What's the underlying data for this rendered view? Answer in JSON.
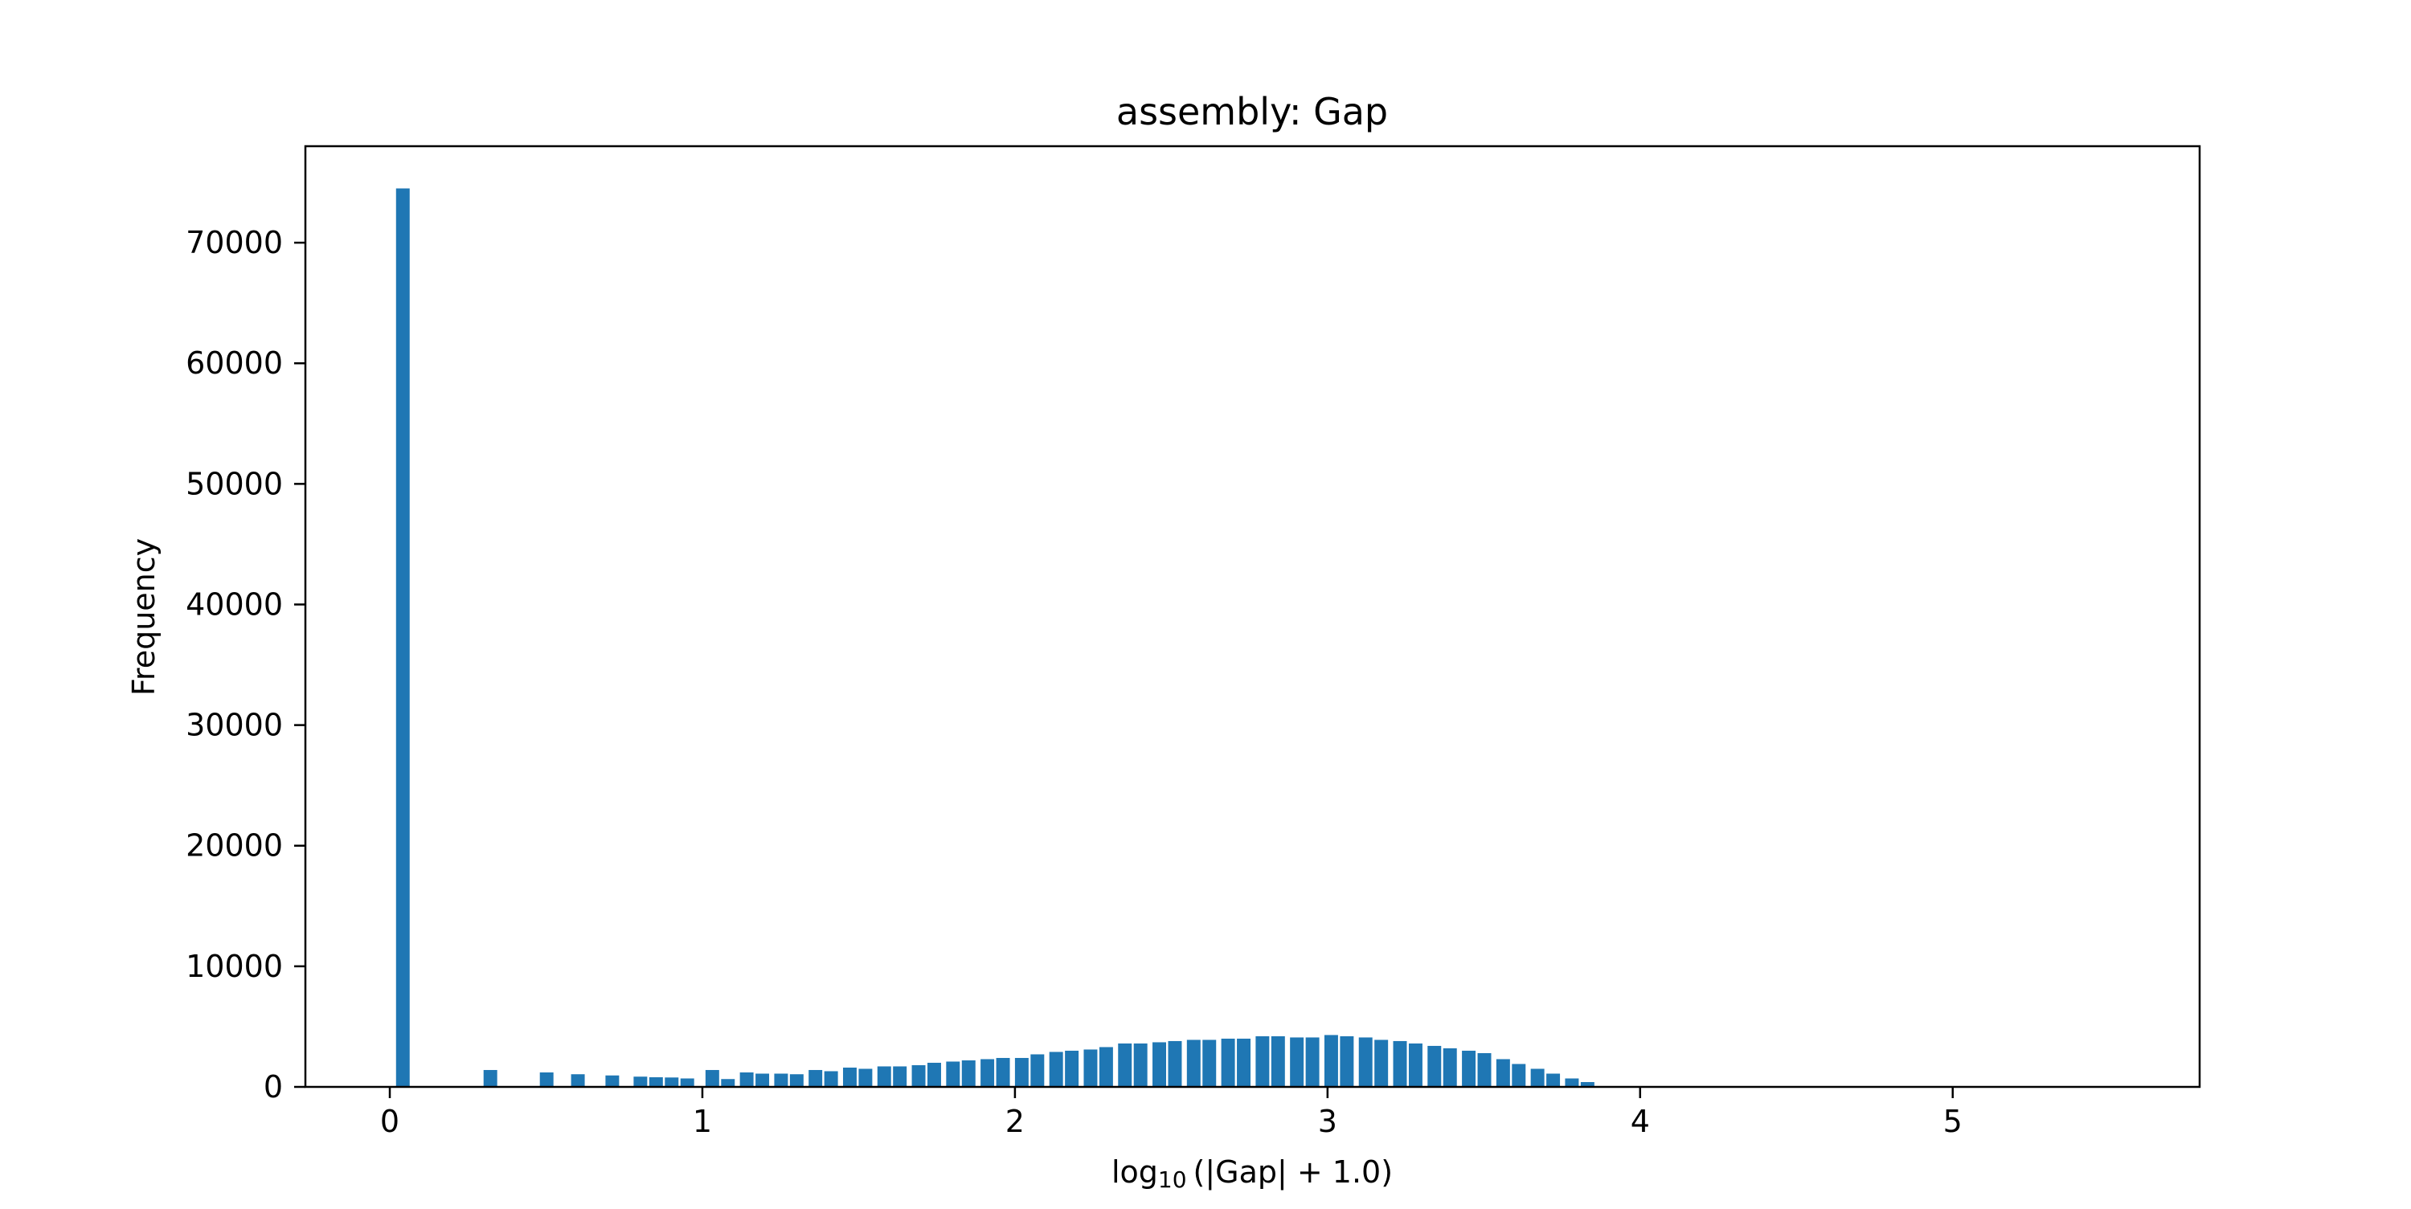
{
  "chart_data": {
    "type": "bar",
    "title": "assembly: Gap",
    "xlabel_main": "log",
    "xlabel_sub": "10",
    "xlabel_rest": "(|Gap| + 1.0)",
    "ylabel": "Frequency",
    "xlim": [
      -0.27,
      5.79
    ],
    "ylim": [
      0,
      78000
    ],
    "xticks": [
      0,
      1,
      2,
      3,
      4,
      5
    ],
    "yticks": [
      0,
      10000,
      20000,
      30000,
      40000,
      50000,
      60000,
      70000
    ],
    "grid": false,
    "bar_color": "#1f77b4",
    "bin_width": 0.0436,
    "bins_x": [
      0.02,
      0.3,
      0.48,
      0.58,
      0.69,
      0.78,
      0.83,
      0.88,
      0.93,
      1.01,
      1.06,
      1.12,
      1.17,
      1.23,
      1.28,
      1.34,
      1.39,
      1.45,
      1.5,
      1.56,
      1.61,
      1.67,
      1.72,
      1.78,
      1.83,
      1.89,
      1.94,
      2.0,
      2.05,
      2.11,
      2.16,
      2.22,
      2.27,
      2.33,
      2.38,
      2.44,
      2.49,
      2.55,
      2.6,
      2.66,
      2.71,
      2.77,
      2.82,
      2.88,
      2.93,
      2.99,
      3.04,
      3.1,
      3.15,
      3.21,
      3.26,
      3.32,
      3.37,
      3.43,
      3.48,
      3.54,
      3.59,
      3.65,
      3.7,
      3.76,
      3.81
    ],
    "values": [
      74500,
      1400,
      1200,
      1050,
      950,
      850,
      800,
      780,
      700,
      1400,
      650,
      1200,
      1100,
      1100,
      1050,
      1400,
      1300,
      1600,
      1500,
      1700,
      1700,
      1800,
      2000,
      2100,
      2200,
      2300,
      2400,
      2400,
      2700,
      2900,
      3000,
      3100,
      3300,
      3600,
      3600,
      3700,
      3800,
      3900,
      3900,
      4000,
      4000,
      4200,
      4200,
      4100,
      4100,
      4300,
      4200,
      4100,
      3900,
      3800,
      3600,
      3400,
      3200,
      3000,
      2800,
      2300,
      1900,
      1500,
      1100,
      700,
      400
    ]
  }
}
